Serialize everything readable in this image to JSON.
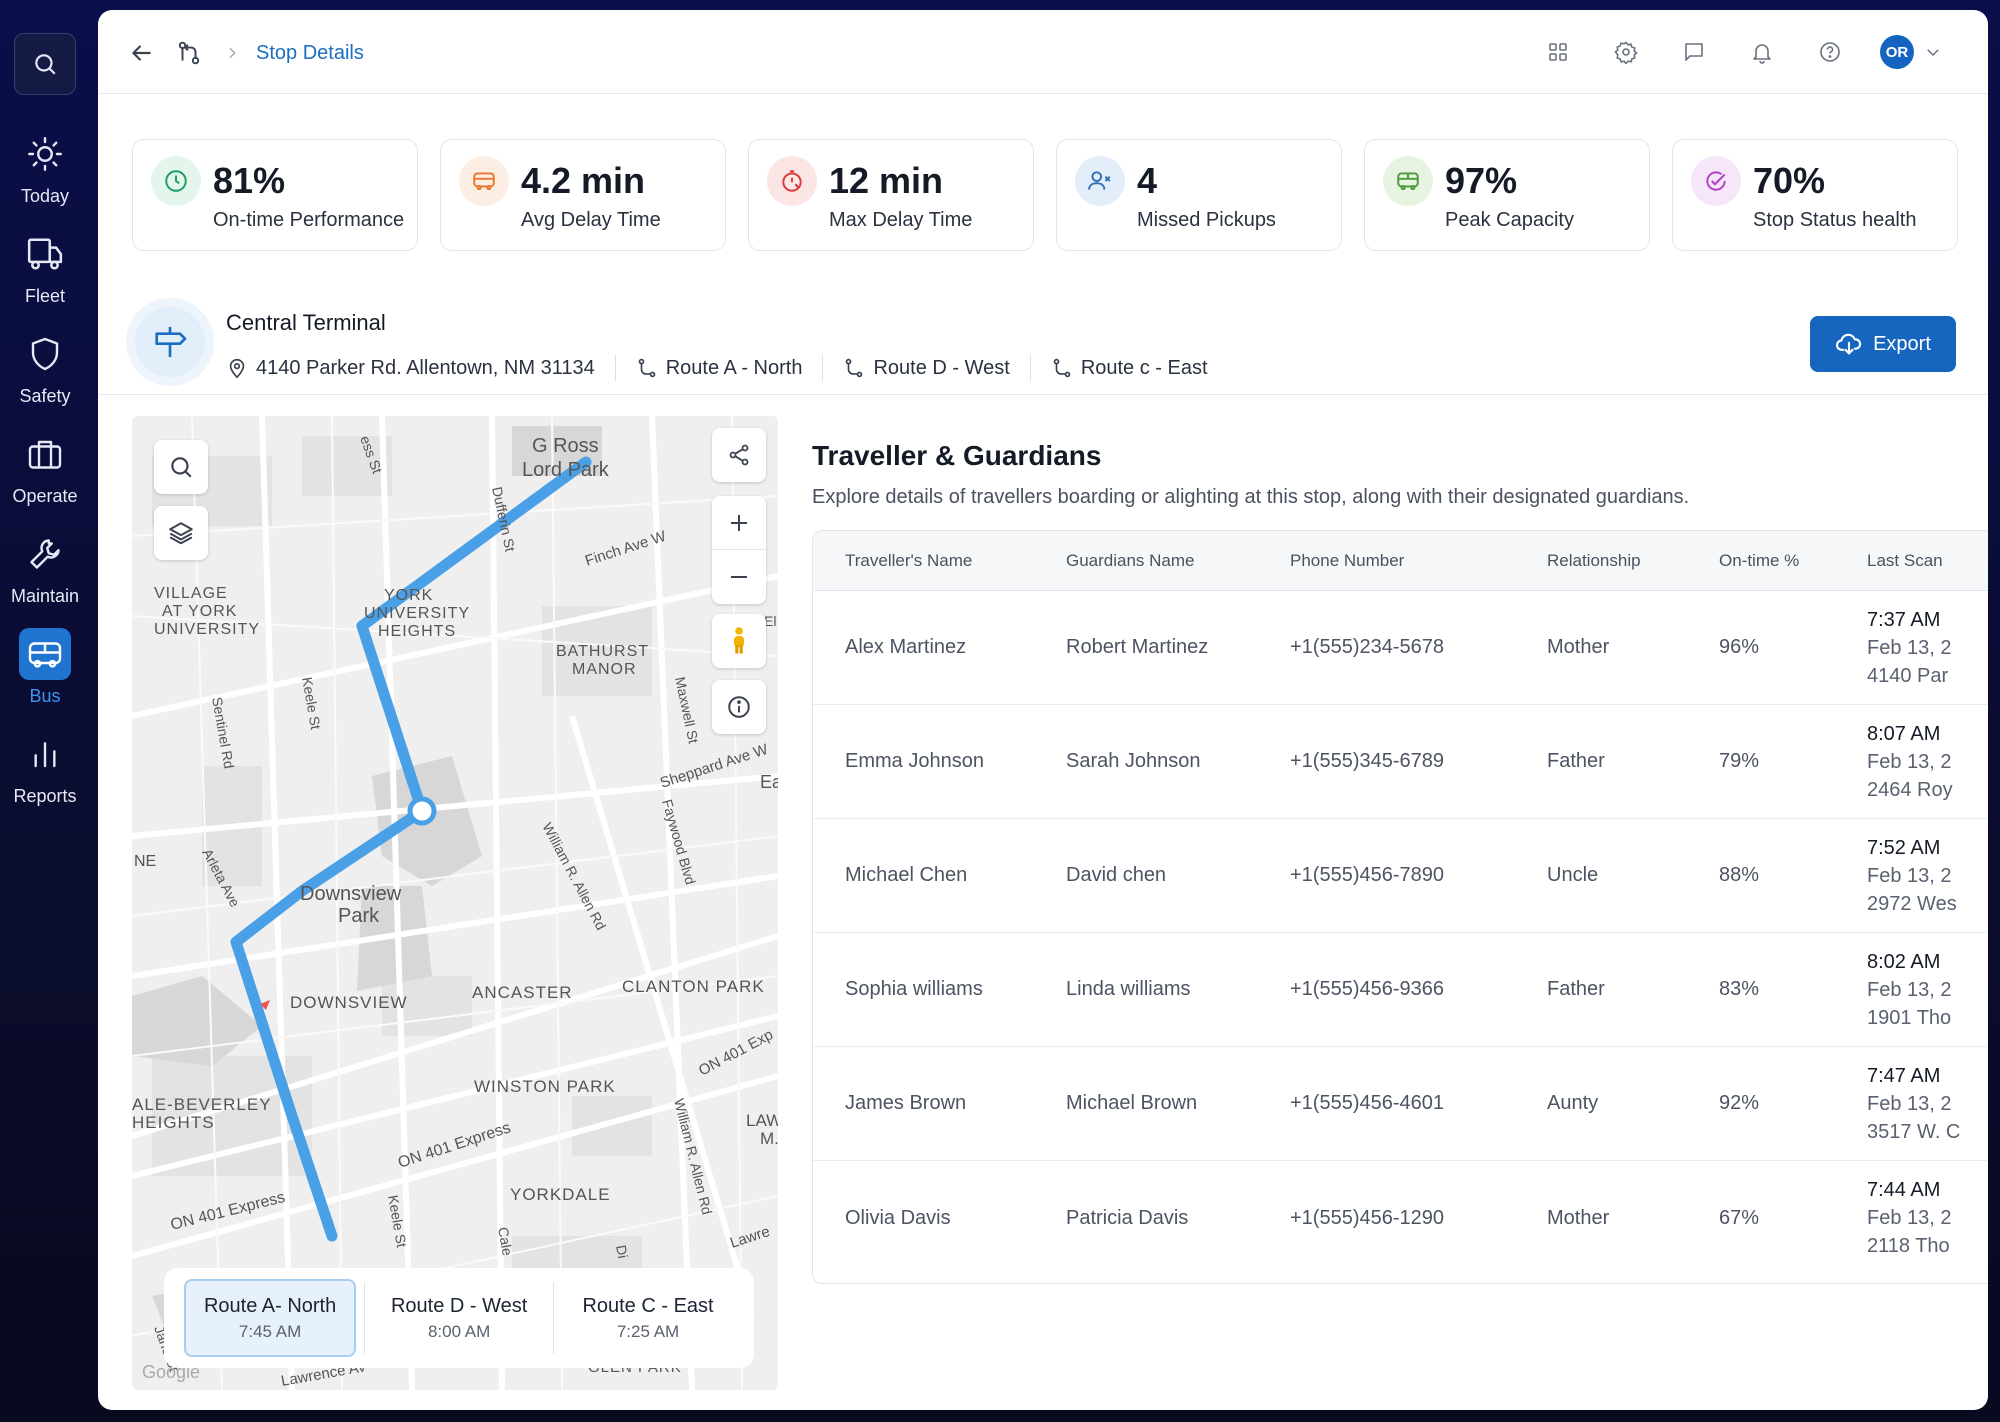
{
  "sidebar": {
    "items": [
      {
        "label": "Today",
        "icon": "sun-icon"
      },
      {
        "label": "Fleet",
        "icon": "truck-icon"
      },
      {
        "label": "Safety",
        "icon": "shield-icon"
      },
      {
        "label": "Operate",
        "icon": "briefcase-icon"
      },
      {
        "label": "Maintain",
        "icon": "wrench-icon"
      },
      {
        "label": "Bus",
        "icon": "bus-icon",
        "active": true
      },
      {
        "label": "Reports",
        "icon": "bar-chart-icon"
      }
    ]
  },
  "header": {
    "breadcrumb_title": "Stop Details",
    "avatar_initials": "OR"
  },
  "kpis": [
    {
      "value": "81%",
      "label": "On-time Performance",
      "color": "#1aa061",
      "bg": "#e4f6ec"
    },
    {
      "value": "4.2 min",
      "label": "Avg Delay Time",
      "color": "#e8742e",
      "bg": "#fdeee3"
    },
    {
      "value": "12 min",
      "label": "Max Delay Time",
      "color": "#d83a3a",
      "bg": "#fbe5e5"
    },
    {
      "value": "4",
      "label": "Missed Pickups",
      "color": "#2f6fb5",
      "bg": "#e3eefa"
    },
    {
      "value": "97%",
      "label": "Peak Capacity",
      "color": "#4c9a3a",
      "bg": "#e8f4e2"
    },
    {
      "value": "70%",
      "label": "Stop Status health",
      "color": "#b33fc9",
      "bg": "#f6e6fa"
    }
  ],
  "stop": {
    "name": "Central Terminal",
    "address": "4140 Parker Rd. Allentown, NM 31134",
    "routes": [
      "Route A - North",
      "Route D - West",
      "Route c - East"
    ],
    "export_label": "Export"
  },
  "map": {
    "labels": {
      "park1": "G Ross",
      "park1b": "Lord Park",
      "village1": "VILLAGE",
      "village2": "AT YORK",
      "village3": "UNIVERSITY",
      "york1": "YORK",
      "york2": "UNIVERSITY",
      "york3": "HEIGHTS",
      "bath1": "BATHURST",
      "bath2": "MANOR",
      "finch": "Finch Ave W",
      "dufferin": "Dufferin St",
      "keele": "Keele St",
      "keele2": "Keele St",
      "sentinel": "Sentinel Rd",
      "maxwell": "Maxwell St",
      "sheppard": "Sheppard Ave W",
      "ea": "Ea",
      "allen": "William R. Allen Rd",
      "allen2": "William R. Allen Rd",
      "faywood": "Faywood Blvd",
      "arleta": "Arleta Ave",
      "ne": "NE",
      "downsview1": "Downsview",
      "downsview2": "Park",
      "downsview3": "DOWNSVIEW",
      "ancaster": "ANCASTER",
      "clanton": "CLANTON PARK",
      "winston": "WINSTON PARK",
      "beverley1": "ALE-BEVERLEY",
      "beverley2": "HEIGHTS",
      "on401a": "ON 401 Express",
      "on401b": "ON 401 Express",
      "on401c": "ON 401 Exp",
      "yorkdale": "YORKDALE",
      "law1": "LAW",
      "law2": "M.",
      "lawre": "Lawre",
      "glen": "GLEN PARK",
      "lawrence": "Lawrence Av",
      "essst": "ess St",
      "cale": "Cale",
      "di": "Di",
      "jane": "Jane St",
      "el": "El",
      "google": "Google"
    },
    "route_tabs": [
      {
        "name": "Route A- North",
        "time": "7:45 AM",
        "active": true
      },
      {
        "name": "Route D - West",
        "time": "8:00 AM"
      },
      {
        "name": "Route C - East",
        "time": "7:25 AM"
      }
    ],
    "route_color": "#4aa0e6"
  },
  "travellers": {
    "title": "Traveller & Guardians",
    "subtitle": "Explore details of travellers boarding or alighting at this stop, along with their designated guardians.",
    "columns": [
      "Traveller's Name",
      "Guardians Name",
      "Phone Number",
      "Relationship",
      "On-time %",
      "Last Scan"
    ],
    "rows": [
      {
        "traveller": "Alex Martinez",
        "guardian": "Robert Martinez",
        "phone": "+1(555)234-5678",
        "relationship": "Mother",
        "ontime": "96%",
        "scan_time": "7:37 AM",
        "scan_date": "Feb 13, 2",
        "scan_place": "4140 Par"
      },
      {
        "traveller": "Emma Johnson",
        "guardian": "Sarah Johnson",
        "phone": "+1(555)345-6789",
        "relationship": "Father",
        "ontime": "79%",
        "scan_time": "8:07 AM",
        "scan_date": "Feb 13, 2",
        "scan_place": "2464 Roy"
      },
      {
        "traveller": "Michael Chen",
        "guardian": "David chen",
        "phone": "+1(555)456-7890",
        "relationship": "Uncle",
        "ontime": "88%",
        "scan_time": "7:52 AM",
        "scan_date": "Feb 13, 2",
        "scan_place": "2972 Wes"
      },
      {
        "traveller": "Sophia williams",
        "guardian": "Linda williams",
        "phone": "+1(555)456-9366",
        "relationship": "Father",
        "ontime": "83%",
        "scan_time": "8:02 AM",
        "scan_date": "Feb 13, 2",
        "scan_place": "1901 Tho"
      },
      {
        "traveller": "James Brown",
        "guardian": "Michael Brown",
        "phone": "+1(555)456-4601",
        "relationship": "Aunty",
        "ontime": "92%",
        "scan_time": "7:47 AM",
        "scan_date": "Feb 13, 2",
        "scan_place": "3517 W. C"
      },
      {
        "traveller": "Olivia Davis",
        "guardian": "Patricia Davis",
        "phone": "+1(555)456-1290",
        "relationship": "Mother",
        "ontime": "67%",
        "scan_time": "7:44 AM",
        "scan_date": "Feb 13, 2",
        "scan_place": "2118 Tho"
      }
    ]
  }
}
